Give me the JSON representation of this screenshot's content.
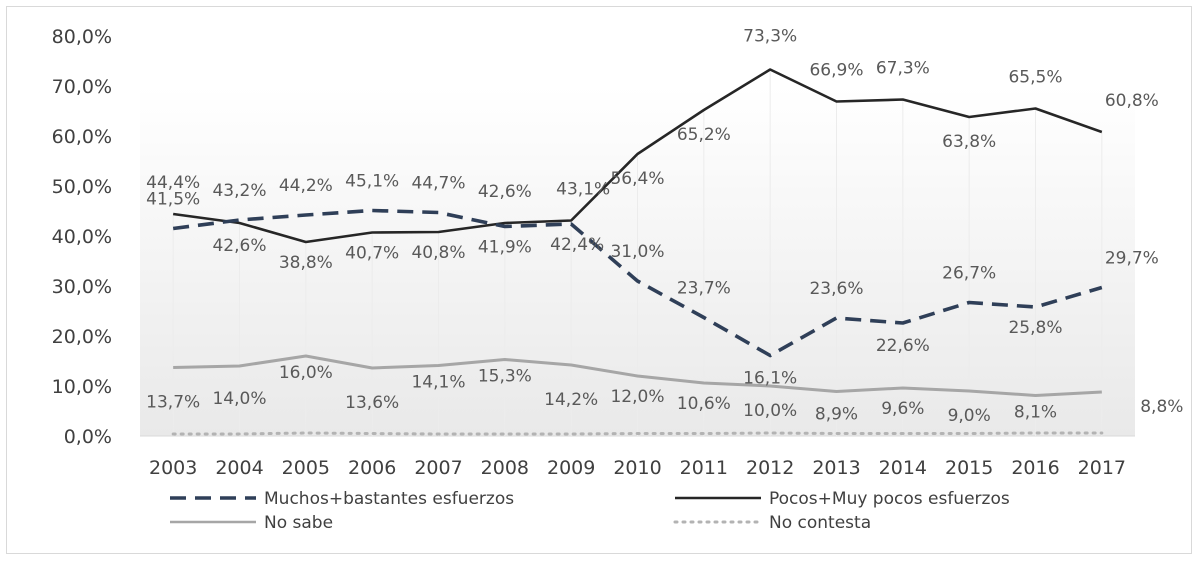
{
  "chart_data": {
    "type": "line",
    "title": "",
    "xlabel": "",
    "ylabel": "",
    "ylim": [
      0,
      80
    ],
    "y_ticks": [
      "0,0%",
      "10,0%",
      "20,0%",
      "30,0%",
      "40,0%",
      "50,0%",
      "60,0%",
      "70,0%",
      "80,0%"
    ],
    "categories": [
      "2003",
      "2004",
      "2005",
      "2006",
      "2007",
      "2008",
      "2009",
      "2010",
      "2011",
      "2012",
      "2013",
      "2014",
      "2015",
      "2016",
      "2017"
    ],
    "grid": false,
    "legend_position": "bottom",
    "series": [
      {
        "name": "Muchos+bastantes esfuerzos",
        "color": "#2f3f58",
        "style": "dashed",
        "values": [
          41.5,
          43.2,
          44.2,
          45.1,
          44.7,
          41.9,
          42.4,
          31.0,
          23.7,
          16.1,
          23.6,
          22.6,
          26.7,
          25.8,
          29.7
        ],
        "labels": [
          "41,5%",
          "43,2%",
          "44,2%",
          "45,1%",
          "44,7%",
          "41,9%",
          "42,4%",
          "31,0%",
          "23,7%",
          "16,1%",
          "23,6%",
          "22,6%",
          "26,7%",
          "25,8%",
          "29,7%"
        ]
      },
      {
        "name": "Pocos+Muy pocos esfuerzos",
        "color": "#262626",
        "style": "solid",
        "values": [
          44.4,
          42.6,
          38.8,
          40.7,
          40.8,
          42.6,
          43.1,
          56.4,
          65.2,
          73.3,
          66.9,
          67.3,
          63.8,
          65.5,
          60.8
        ],
        "labels": [
          "44,4%",
          "42,6%",
          "38,8%",
          "40,7%",
          "40,8%",
          "42,6%",
          "43,1%",
          "56,4%",
          "65,2%",
          "73,3%",
          "66,9%",
          "67,3%",
          "63,8%",
          "65,5%",
          "60,8%"
        ]
      },
      {
        "name": "No sabe",
        "color": "#a6a6a6",
        "style": "solid",
        "values": [
          13.7,
          14.0,
          16.0,
          13.6,
          14.1,
          15.3,
          14.2,
          12.0,
          10.6,
          10.0,
          8.9,
          9.6,
          9.0,
          8.1,
          8.8
        ],
        "labels": [
          "13,7%",
          "14,0%",
          "16,0%",
          "13,6%",
          "14,1%",
          "15,3%",
          "14,2%",
          "12,0%",
          "10,6%",
          "10,0%",
          "8,9%",
          "9,6%",
          "9,0%",
          "8,1%",
          "8,8%"
        ]
      },
      {
        "name": "No contesta",
        "color": "#b3b3b3",
        "style": "dotted",
        "values": [
          0.4,
          0.4,
          0.6,
          0.5,
          0.4,
          0.4,
          0.4,
          0.5,
          0.5,
          0.6,
          0.5,
          0.5,
          0.5,
          0.6,
          0.6
        ],
        "labels": []
      }
    ]
  }
}
